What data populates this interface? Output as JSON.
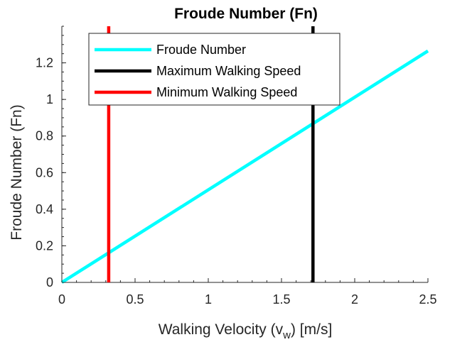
{
  "chart_data": {
    "type": "line",
    "title": "Froude Number (Fn)",
    "xlabel": "Walking Velocity (v_w) [m/s]",
    "xlabel_parts": {
      "before": "Walking Velocity (v",
      "sub": "w",
      "after": ") [m/s]"
    },
    "ylabel": "Froude Number (Fn)",
    "xlim": [
      0,
      2.5
    ],
    "ylim": [
      0,
      1.4
    ],
    "xticks": [
      0,
      0.5,
      1,
      1.5,
      2,
      2.5
    ],
    "xtick_labels": [
      "0",
      "0.5",
      "1",
      "1.5",
      "2",
      "2.5"
    ],
    "yticks": [
      0,
      0.2,
      0.4,
      0.6,
      0.8,
      1,
      1.2
    ],
    "ytick_labels": [
      "0",
      "0.2",
      "0.4",
      "0.6",
      "0.8",
      "1",
      "1.2"
    ],
    "grid": false,
    "legend_position": "top-left",
    "series": [
      {
        "name": "Froude Number",
        "color": "#00FFFF",
        "kind": "line",
        "x": [
          0,
          2.5
        ],
        "y": [
          0,
          1.265
        ]
      },
      {
        "name": "Maximum Walking Speed",
        "color": "#000000",
        "kind": "vline",
        "x": 1.715
      },
      {
        "name": "Minimum Walking Speed",
        "color": "#FF0000",
        "kind": "vline",
        "x": 0.32
      }
    ]
  }
}
